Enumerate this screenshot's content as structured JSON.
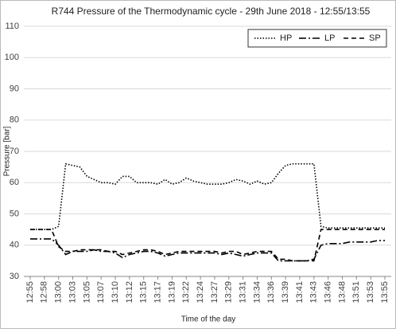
{
  "chart_data": {
    "type": "line",
    "title": "R744 Pressure of the Thermodynamic cycle - 29th June 2018 - 12:55/13:55",
    "x_label": "Time of the day",
    "y_label": "Pressure [bar]",
    "categories": [
      "12:55",
      null,
      "12:58",
      null,
      "13:00",
      null,
      "13:03",
      null,
      "13:05",
      null,
      "13:07",
      null,
      "13:10",
      null,
      "13:12",
      null,
      "13:15",
      null,
      "13:17",
      null,
      "13:19",
      null,
      "13:22",
      null,
      "13:24",
      null,
      "13:27",
      null,
      "13:29",
      null,
      "13:31",
      null,
      "13:34",
      null,
      "13:36",
      null,
      "13:39",
      null,
      "13:41",
      null,
      "13:43",
      null,
      "13:46",
      null,
      "13:48",
      null,
      "13:51",
      null,
      "13:53",
      null,
      "13:55"
    ],
    "series": [
      {
        "name": "HP",
        "color": "#000000",
        "style": "dotted",
        "values": [
          45,
          45,
          45,
          45,
          46,
          66,
          65.5,
          65,
          62,
          61,
          60,
          60,
          59.5,
          62,
          62,
          60,
          60,
          60,
          59.5,
          61,
          59.5,
          60,
          61.5,
          60.5,
          60,
          59.5,
          59.5,
          59.5,
          60,
          61,
          60.5,
          59.5,
          60.5,
          59.5,
          60,
          63,
          65.5,
          66,
          66,
          66,
          66,
          46,
          45.5,
          45.5,
          45.5,
          45.5,
          45.5,
          45.5,
          45.5,
          45.5,
          45.5
        ]
      },
      {
        "name": "LP",
        "color": "#000000",
        "style": "dashdot",
        "values": [
          42,
          42,
          42,
          42,
          40,
          37,
          38,
          38,
          38,
          38.5,
          38,
          38,
          37.5,
          36,
          37,
          37.5,
          38,
          38,
          37.5,
          36.5,
          37,
          37.5,
          37.5,
          37.5,
          37.5,
          37.5,
          37.5,
          37,
          37.5,
          37,
          36.5,
          37,
          37.5,
          37.5,
          37.5,
          35,
          35,
          35,
          35,
          35,
          35.5,
          40,
          40.5,
          40.5,
          40.5,
          41,
          41,
          41,
          41,
          41.5,
          41.5
        ]
      },
      {
        "name": "SP",
        "color": "#000000",
        "style": "dashed",
        "values": [
          45,
          45,
          45,
          45,
          39.5,
          38,
          38,
          38.5,
          38.5,
          38.5,
          38.5,
          38,
          38,
          37,
          37.5,
          38,
          38.5,
          38.5,
          38,
          37,
          37.5,
          38,
          38,
          38,
          38,
          38,
          38,
          37.5,
          38,
          38,
          37,
          37.5,
          38,
          38,
          38,
          35.5,
          35.5,
          35,
          35,
          35,
          35,
          45,
          45,
          45,
          45,
          45,
          45,
          45,
          45,
          45,
          45
        ]
      }
    ],
    "ylim": [
      30,
      110
    ],
    "yticks": [
      30,
      40,
      50,
      60,
      70,
      80,
      90,
      100,
      110
    ],
    "grid": true,
    "legend": "upper right"
  }
}
